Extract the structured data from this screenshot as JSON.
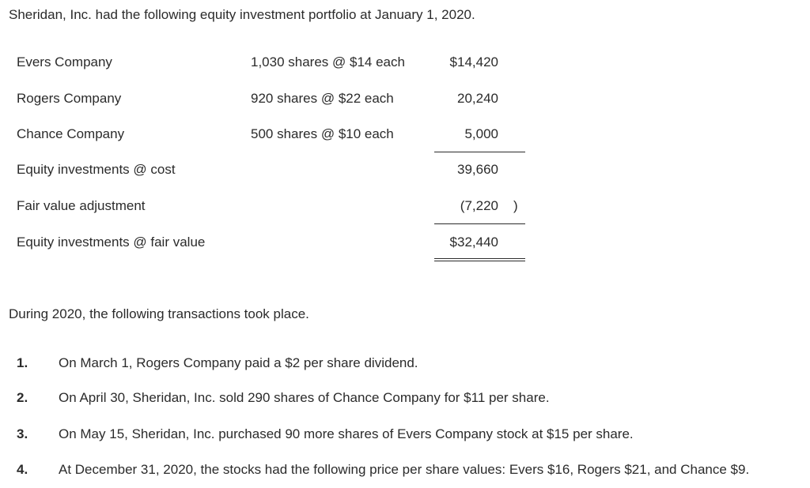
{
  "intro": "Sheridan, Inc. had the following equity investment portfolio at January 1, 2020.",
  "portfolio": {
    "rows": [
      {
        "label": "Evers Company",
        "shares": "1,030 shares @ $14 each",
        "amount": "$14,420"
      },
      {
        "label": "Rogers Company",
        "shares": "920 shares @ $22 each",
        "amount": "20,240"
      },
      {
        "label": "Chance Company",
        "shares": "500 shares @ $10 each",
        "amount": "5,000"
      },
      {
        "label": "Equity investments @ cost",
        "shares": "",
        "amount": "39,660"
      },
      {
        "label": "Fair value adjustment",
        "shares": "",
        "amount": "(7,220",
        "amount_close": ")"
      },
      {
        "label": "Equity investments @ fair value",
        "shares": "",
        "amount": "$32,440"
      }
    ]
  },
  "transactions_intro": "During 2020, the following transactions took place.",
  "transactions": [
    {
      "number": "1.",
      "text": "On March 1, Rogers Company paid a $2 per share dividend."
    },
    {
      "number": "2.",
      "text": "On April 30, Sheridan, Inc. sold 290 shares of Chance Company for $11 per share."
    },
    {
      "number": "3.",
      "text": "On May 15, Sheridan, Inc. purchased 90 more shares of Evers Company stock at $15 per share."
    },
    {
      "number": "4.",
      "text": "At December 31, 2020, the stocks had the following price per share values: Evers $16, Rogers $21, and Chance $9."
    }
  ]
}
